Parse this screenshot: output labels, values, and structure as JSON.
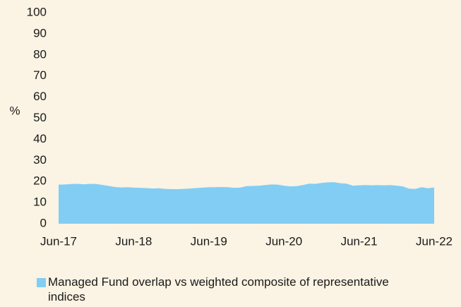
{
  "chart_data": {
    "type": "area",
    "y_label": "%",
    "categories": [
      "Jun-17",
      null,
      null,
      null,
      null,
      null,
      null,
      null,
      null,
      null,
      null,
      null,
      "Jun-18",
      null,
      null,
      null,
      null,
      null,
      null,
      null,
      null,
      null,
      null,
      null,
      "Jun-19",
      null,
      null,
      null,
      null,
      null,
      null,
      null,
      null,
      null,
      null,
      null,
      "Jun-20",
      null,
      null,
      null,
      null,
      null,
      null,
      null,
      null,
      null,
      null,
      null,
      "Jun-21",
      null,
      null,
      null,
      null,
      null,
      null,
      null,
      null,
      null,
      null,
      null,
      "Jun-22"
    ],
    "series": [
      {
        "name": "Managed Fund overlap vs weighted composite of representative indices",
        "color": "#82cdf3",
        "values": [
          18.5,
          18.6,
          18.8,
          18.9,
          18.7,
          18.9,
          18.8,
          18.4,
          17.9,
          17.4,
          17.2,
          17.3,
          17.1,
          17.0,
          16.9,
          16.7,
          16.8,
          16.5,
          16.4,
          16.4,
          16.5,
          16.7,
          16.9,
          17.1,
          17.3,
          17.3,
          17.4,
          17.3,
          17.0,
          17.1,
          17.8,
          17.9,
          18.0,
          18.3,
          18.6,
          18.5,
          18.0,
          17.7,
          17.8,
          18.3,
          19.0,
          18.9,
          19.3,
          19.6,
          19.7,
          19.2,
          19.0,
          18.0,
          18.2,
          18.3,
          18.2,
          18.3,
          18.2,
          18.3,
          18.0,
          17.7,
          16.6,
          16.5,
          17.3,
          16.8,
          17.2
        ]
      }
    ],
    "ylim": [
      0,
      100
    ],
    "yticks": [
      0,
      10,
      20,
      30,
      40,
      50,
      60,
      70,
      80,
      90,
      100
    ],
    "grid": false
  }
}
